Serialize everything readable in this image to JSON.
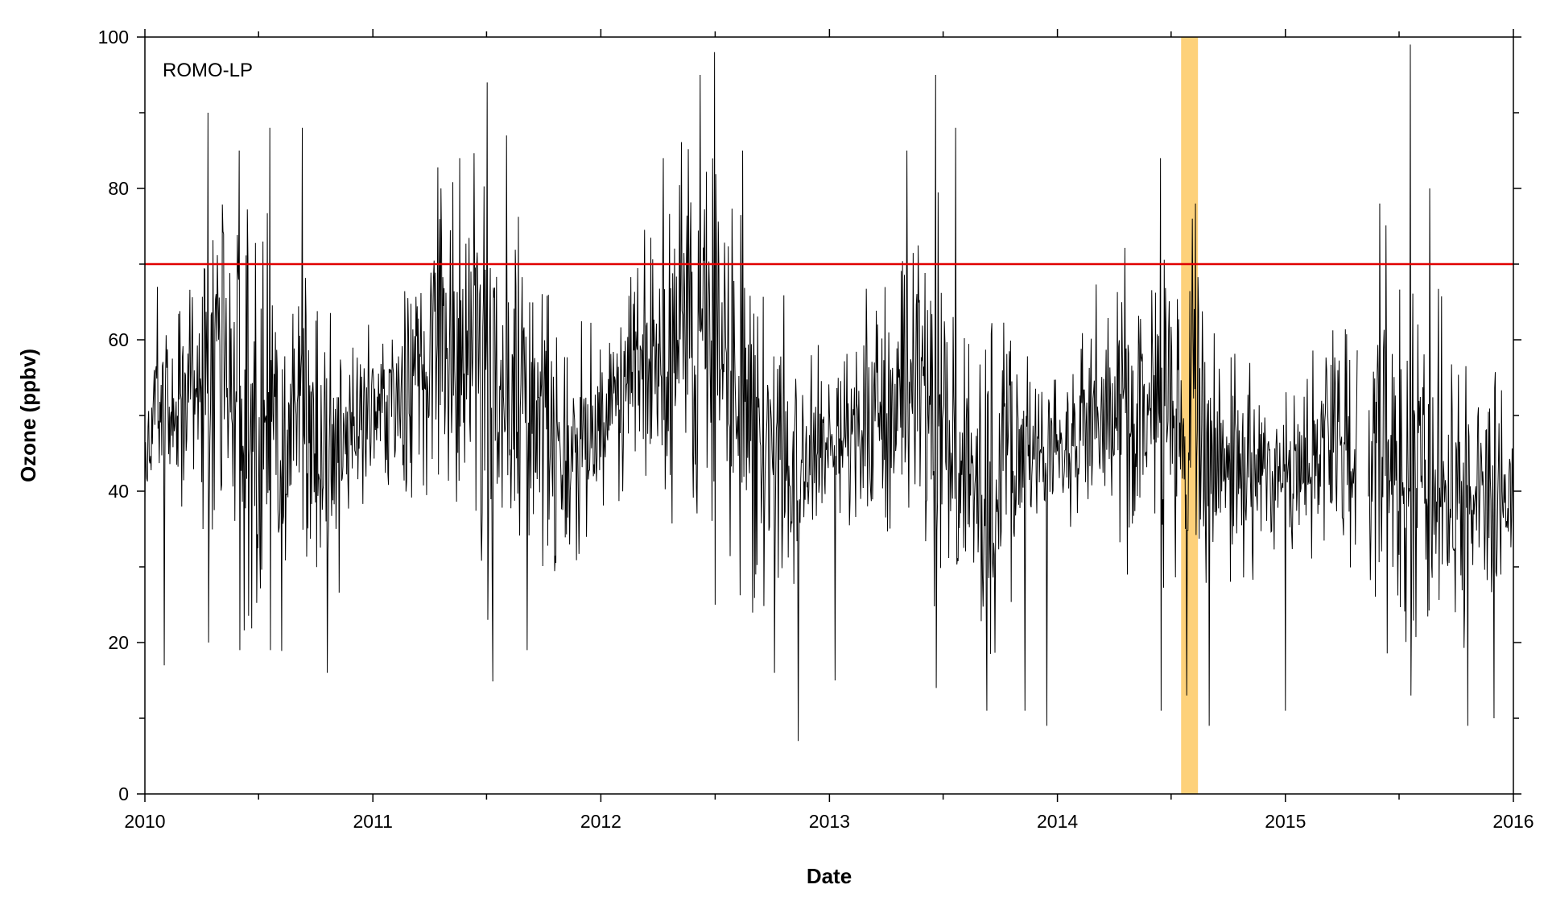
{
  "chart_data": {
    "type": "line",
    "annotation": "ROMO-LP",
    "xlabel": "Date",
    "ylabel": "Ozone (ppbv)",
    "xlim": [
      "2010-01-01",
      "2016-01-01"
    ],
    "ylim": [
      0,
      100
    ],
    "x_ticks": [
      "2010",
      "2011",
      "2012",
      "2013",
      "2014",
      "2015",
      "2016"
    ],
    "y_ticks": [
      0,
      20,
      40,
      60,
      80,
      100
    ],
    "grid": false,
    "line_color": "#000000",
    "threshold": {
      "value": 70,
      "color": "#e00000"
    },
    "highlight": {
      "start": "2014-07-18",
      "end": "2014-08-14",
      "color": "#fdd17a"
    },
    "frequency": "daily",
    "gaps": [
      [
        "2015-04-26",
        "2015-05-14"
      ]
    ],
    "series": [
      {
        "values": [
          [
            "2010-01-01",
            47
          ],
          [
            "2010-01-15",
            50
          ],
          [
            "2010-02-01",
            51
          ],
          [
            "2010-02-15",
            51
          ],
          [
            "2010-03-01",
            52
          ],
          [
            "2010-03-15",
            53
          ],
          [
            "2010-04-01",
            55
          ],
          [
            "2010-04-15",
            56
          ],
          [
            "2010-05-01",
            57
          ],
          [
            "2010-05-15",
            57
          ],
          [
            "2010-06-01",
            56
          ],
          [
            "2010-06-15",
            53
          ],
          [
            "2010-07-01",
            50
          ],
          [
            "2010-07-15",
            49
          ],
          [
            "2010-08-01",
            49
          ],
          [
            "2010-08-15",
            50
          ],
          [
            "2010-09-01",
            51
          ],
          [
            "2010-09-15",
            48
          ],
          [
            "2010-10-01",
            46
          ],
          [
            "2010-10-15",
            44
          ],
          [
            "2010-11-01",
            45
          ],
          [
            "2010-11-15",
            46
          ],
          [
            "2010-12-01",
            48
          ],
          [
            "2010-12-15",
            49
          ],
          [
            "2011-01-01",
            51
          ],
          [
            "2011-01-15",
            52
          ],
          [
            "2011-02-01",
            52
          ],
          [
            "2011-02-15",
            53
          ],
          [
            "2011-03-01",
            54
          ],
          [
            "2011-03-15",
            55
          ],
          [
            "2011-04-01",
            56
          ],
          [
            "2011-04-15",
            57
          ],
          [
            "2011-05-01",
            57
          ],
          [
            "2011-05-15",
            57
          ],
          [
            "2011-06-01",
            57
          ],
          [
            "2011-06-15",
            56
          ],
          [
            "2011-07-01",
            54
          ],
          [
            "2011-07-15",
            53
          ],
          [
            "2011-08-01",
            52
          ],
          [
            "2011-08-15",
            51
          ],
          [
            "2011-09-01",
            50
          ],
          [
            "2011-09-15",
            48
          ],
          [
            "2011-10-01",
            46
          ],
          [
            "2011-10-15",
            45
          ],
          [
            "2011-11-01",
            44
          ],
          [
            "2011-11-15",
            45
          ],
          [
            "2011-12-01",
            46
          ],
          [
            "2011-12-15",
            47
          ],
          [
            "2012-01-01",
            48
          ],
          [
            "2012-01-15",
            50
          ],
          [
            "2012-02-01",
            51
          ],
          [
            "2012-02-15",
            53
          ],
          [
            "2012-03-01",
            55
          ],
          [
            "2012-03-15",
            57
          ],
          [
            "2012-04-01",
            58
          ],
          [
            "2012-04-15",
            59
          ],
          [
            "2012-05-01",
            60
          ],
          [
            "2012-05-15",
            61
          ],
          [
            "2012-06-01",
            61
          ],
          [
            "2012-06-15",
            60
          ],
          [
            "2012-07-01",
            58
          ],
          [
            "2012-07-15",
            56
          ],
          [
            "2012-08-01",
            54
          ],
          [
            "2012-08-15",
            52
          ],
          [
            "2012-09-01",
            50
          ],
          [
            "2012-09-15",
            47
          ],
          [
            "2012-10-01",
            45
          ],
          [
            "2012-10-15",
            44
          ],
          [
            "2012-11-01",
            44
          ],
          [
            "2012-11-15",
            44
          ],
          [
            "2012-12-01",
            45
          ],
          [
            "2012-12-15",
            46
          ],
          [
            "2013-01-01",
            46
          ],
          [
            "2013-01-15",
            47
          ],
          [
            "2013-02-01",
            48
          ],
          [
            "2013-02-15",
            49
          ],
          [
            "2013-03-01",
            50
          ],
          [
            "2013-03-15",
            51
          ],
          [
            "2013-04-01",
            52
          ],
          [
            "2013-04-15",
            53
          ],
          [
            "2013-05-01",
            54
          ],
          [
            "2013-05-15",
            54
          ],
          [
            "2013-06-01",
            54
          ],
          [
            "2013-06-15",
            52
          ],
          [
            "2013-07-01",
            49
          ],
          [
            "2013-07-15",
            46
          ],
          [
            "2013-08-01",
            45
          ],
          [
            "2013-08-15",
            44
          ],
          [
            "2013-09-01",
            43
          ],
          [
            "2013-09-15",
            42
          ],
          [
            "2013-10-01",
            41
          ],
          [
            "2013-10-15",
            41
          ],
          [
            "2013-11-01",
            42
          ],
          [
            "2013-11-15",
            43
          ],
          [
            "2013-12-01",
            44
          ],
          [
            "2013-12-15",
            45
          ],
          [
            "2014-01-01",
            45
          ],
          [
            "2014-01-15",
            46
          ],
          [
            "2014-02-01",
            47
          ],
          [
            "2014-02-15",
            48
          ],
          [
            "2014-03-01",
            49
          ],
          [
            "2014-03-15",
            50
          ],
          [
            "2014-04-01",
            51
          ],
          [
            "2014-04-15",
            51
          ],
          [
            "2014-05-01",
            51
          ],
          [
            "2014-05-15",
            50
          ],
          [
            "2014-06-01",
            49
          ],
          [
            "2014-06-15",
            47
          ],
          [
            "2014-07-01",
            45
          ],
          [
            "2014-07-15",
            44
          ],
          [
            "2014-08-01",
            44
          ],
          [
            "2014-08-15",
            44
          ],
          [
            "2014-09-01",
            44
          ],
          [
            "2014-09-15",
            43
          ],
          [
            "2014-10-01",
            43
          ],
          [
            "2014-10-15",
            42
          ],
          [
            "2014-11-01",
            42
          ],
          [
            "2014-11-15",
            42
          ],
          [
            "2014-12-01",
            43
          ],
          [
            "2014-12-15",
            43
          ],
          [
            "2015-01-01",
            43
          ],
          [
            "2015-01-15",
            44
          ],
          [
            "2015-02-01",
            45
          ],
          [
            "2015-02-15",
            45
          ],
          [
            "2015-03-01",
            46
          ],
          [
            "2015-03-15",
            47
          ],
          [
            "2015-04-01",
            48
          ],
          [
            "2015-04-15",
            48
          ],
          [
            "2015-05-15",
            47
          ],
          [
            "2015-06-01",
            47
          ],
          [
            "2015-06-15",
            46
          ],
          [
            "2015-07-01",
            45
          ],
          [
            "2015-07-15",
            44
          ],
          [
            "2015-08-01",
            43
          ],
          [
            "2015-08-15",
            43
          ],
          [
            "2015-09-01",
            42
          ],
          [
            "2015-09-15",
            41
          ],
          [
            "2015-10-01",
            40
          ],
          [
            "2015-10-15",
            39
          ],
          [
            "2015-11-01",
            40
          ],
          [
            "2015-11-15",
            41
          ],
          [
            "2015-12-01",
            42
          ],
          [
            "2015-12-15",
            42
          ],
          [
            "2016-01-01",
            42
          ]
        ],
        "spread": [
          [
            "2010-01-01",
            4
          ],
          [
            "2010-04-01",
            8
          ],
          [
            "2010-07-01",
            14
          ],
          [
            "2010-10-01",
            9
          ],
          [
            "2011-01-01",
            5
          ],
          [
            "2011-04-01",
            9
          ],
          [
            "2011-07-01",
            14
          ],
          [
            "2011-10-01",
            9
          ],
          [
            "2012-01-01",
            5
          ],
          [
            "2012-04-01",
            9
          ],
          [
            "2012-07-01",
            13
          ],
          [
            "2012-10-01",
            9
          ],
          [
            "2013-01-01",
            5
          ],
          [
            "2013-04-01",
            8
          ],
          [
            "2013-07-01",
            12
          ],
          [
            "2013-10-01",
            9
          ],
          [
            "2014-01-01",
            4
          ],
          [
            "2014-04-01",
            8
          ],
          [
            "2014-07-01",
            11
          ],
          [
            "2014-10-01",
            8
          ],
          [
            "2015-01-01",
            5
          ],
          [
            "2015-04-01",
            8
          ],
          [
            "2015-07-01",
            12
          ],
          [
            "2015-10-01",
            9
          ],
          [
            "2016-01-01",
            5
          ]
        ],
        "extremes": [
          [
            "2010-01-21",
            67
          ],
          [
            "2010-02-01",
            17
          ],
          [
            "2010-04-12",
            90
          ],
          [
            "2010-04-13",
            20
          ],
          [
            "2010-06-01",
            85
          ],
          [
            "2010-06-02",
            19
          ],
          [
            "2010-07-20",
            88
          ],
          [
            "2010-07-21",
            19
          ],
          [
            "2010-09-10",
            88
          ],
          [
            "2010-10-20",
            16
          ],
          [
            "2011-04-20",
            80
          ],
          [
            "2011-05-20",
            84
          ],
          [
            "2011-07-03",
            94
          ],
          [
            "2011-07-04",
            23
          ],
          [
            "2011-08-03",
            87
          ],
          [
            "2011-09-05",
            19
          ],
          [
            "2012-04-10",
            84
          ],
          [
            "2012-06-08",
            95
          ],
          [
            "2012-07-01",
            98
          ],
          [
            "2012-07-02",
            25
          ],
          [
            "2012-08-15",
            85
          ],
          [
            "2012-10-05",
            16
          ],
          [
            "2012-11-12",
            7
          ],
          [
            "2013-01-10",
            15
          ],
          [
            "2013-05-05",
            85
          ],
          [
            "2013-06-20",
            95
          ],
          [
            "2013-06-21",
            14
          ],
          [
            "2013-07-22",
            88
          ],
          [
            "2013-09-10",
            11
          ],
          [
            "2013-11-10",
            11
          ],
          [
            "2013-12-15",
            9
          ],
          [
            "2014-06-15",
            84
          ],
          [
            "2014-06-16",
            11
          ],
          [
            "2014-07-27",
            13
          ],
          [
            "2014-08-05",
            76
          ],
          [
            "2014-08-10",
            78
          ],
          [
            "2014-09-01",
            9
          ],
          [
            "2015-01-01",
            11
          ],
          [
            "2015-06-01",
            78
          ],
          [
            "2015-07-20",
            99
          ],
          [
            "2015-07-21",
            13
          ],
          [
            "2015-08-20",
            80
          ],
          [
            "2015-10-20",
            9
          ],
          [
            "2015-12-01",
            10
          ]
        ]
      }
    ]
  }
}
